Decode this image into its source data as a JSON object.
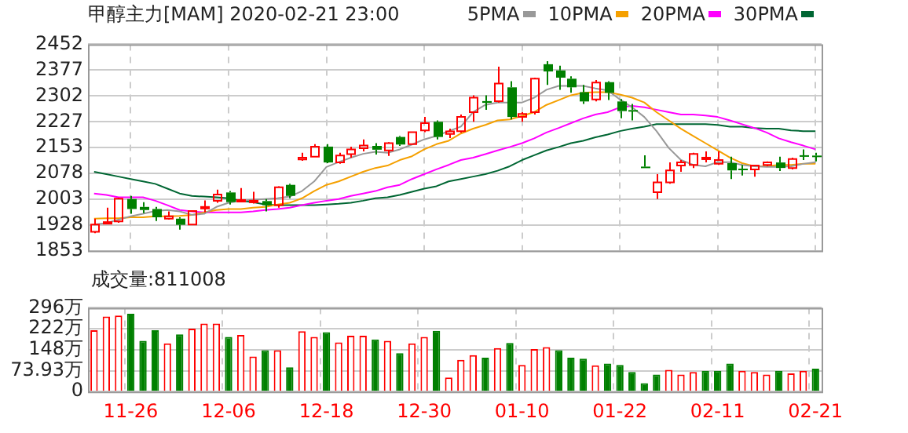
{
  "chart_data": [
    {
      "type": "candlestick",
      "title": "甲醇主力[MAM]  2020-02-21  23:00",
      "categories": [
        null,
        null,
        null,
        null,
        null,
        null,
        null,
        null,
        null,
        null,
        null,
        null,
        null,
        null,
        null,
        null,
        null,
        null,
        null,
        null,
        null,
        null,
        null,
        null,
        null,
        null,
        null,
        null,
        null,
        null,
        null,
        null,
        null,
        null,
        null,
        null,
        null,
        null,
        null,
        null,
        null,
        null,
        null,
        null,
        null,
        null,
        null,
        null,
        null,
        null,
        null,
        null,
        null,
        null,
        null,
        null,
        null,
        null,
        null,
        null
      ],
      "ohlc": [
        [
          1908,
          1946,
          1904,
          1929
        ],
        [
          1932,
          1978,
          1930,
          1936
        ],
        [
          1938,
          2007,
          1934,
          2004
        ],
        [
          2003,
          2012,
          1960,
          1974
        ],
        [
          1980,
          1994,
          1962,
          1971
        ],
        [
          1974,
          1980,
          1939,
          1950
        ],
        [
          1946,
          1967,
          1943,
          1953
        ],
        [
          1946,
          1950,
          1914,
          1928
        ],
        [
          1929,
          1968,
          1929,
          1968
        ],
        [
          1976,
          1999,
          1964,
          1980
        ],
        [
          1998,
          2030,
          1992,
          2016
        ],
        [
          2022,
          2026,
          1987,
          1994
        ],
        [
          1997,
          2035,
          1994,
          2000
        ],
        [
          1994,
          2024,
          1990,
          1998
        ],
        [
          1997,
          2003,
          1967,
          1985
        ],
        [
          1985,
          2040,
          1978,
          2037
        ],
        [
          2044,
          2047,
          2005,
          2012
        ],
        [
          2118,
          2137,
          2114,
          2123
        ],
        [
          2126,
          2162,
          2126,
          2155
        ],
        [
          2155,
          2162,
          2107,
          2109
        ],
        [
          2109,
          2137,
          2105,
          2129
        ],
        [
          2133,
          2155,
          2123,
          2147
        ],
        [
          2150,
          2176,
          2141,
          2158
        ],
        [
          2157,
          2165,
          2132,
          2146
        ],
        [
          2144,
          2168,
          2128,
          2165
        ],
        [
          2183,
          2186,
          2157,
          2161
        ],
        [
          2162,
          2197,
          2162,
          2197
        ],
        [
          2202,
          2241,
          2197,
          2223
        ],
        [
          2227,
          2231,
          2176,
          2183
        ],
        [
          2192,
          2207,
          2180,
          2199
        ],
        [
          2200,
          2248,
          2195,
          2241
        ],
        [
          2255,
          2304,
          2227,
          2297
        ],
        [
          2287,
          2304,
          2262,
          2282
        ],
        [
          2287,
          2387,
          2283,
          2338
        ],
        [
          2327,
          2345,
          2234,
          2241
        ],
        [
          2241,
          2255,
          2227,
          2250
        ],
        [
          2255,
          2355,
          2248,
          2352
        ],
        [
          2394,
          2403,
          2334,
          2373
        ],
        [
          2376,
          2390,
          2320,
          2355
        ],
        [
          2352,
          2359,
          2311,
          2327
        ],
        [
          2313,
          2334,
          2279,
          2286
        ],
        [
          2292,
          2348,
          2286,
          2341
        ],
        [
          2342,
          2345,
          2290,
          2311
        ],
        [
          2286,
          2293,
          2237,
          2258
        ],
        [
          2261,
          2279,
          2231,
          2258
        ],
        [
          2097,
          2130,
          2096,
          2096
        ],
        [
          2023,
          2075,
          2003,
          2051
        ],
        [
          2051,
          2109,
          2047,
          2086
        ],
        [
          2100,
          2116,
          2082,
          2109
        ],
        [
          2102,
          2137,
          2093,
          2134
        ],
        [
          2120,
          2141,
          2109,
          2123
        ],
        [
          2105,
          2141,
          2102,
          2116
        ],
        [
          2107,
          2126,
          2061,
          2086
        ],
        [
          2091,
          2102,
          2071,
          2088
        ],
        [
          2089,
          2102,
          2068,
          2100
        ],
        [
          2102,
          2112,
          2098,
          2109
        ],
        [
          2109,
          2126,
          2084,
          2093
        ],
        [
          2093,
          2123,
          2089,
          2119
        ],
        [
          2130,
          2147,
          2116,
          2127
        ],
        [
          2129,
          2137,
          2112,
          2126
        ]
      ],
      "series": [
        {
          "name": "5PMA",
          "type": "line",
          "color": "#999999",
          "values": [
            1929,
            1933,
            1943,
            1953,
            1960,
            1968,
            1971,
            1967,
            1957,
            1960,
            1980,
            1992,
            1998,
            2001,
            2003,
            2005,
            2010,
            2026,
            2054,
            2096,
            2110,
            2123,
            2134,
            2140,
            2137,
            2147,
            2161,
            2176,
            2186,
            2200,
            2213,
            2255,
            2276,
            2283,
            2283,
            2283,
            2297,
            2320,
            2331,
            2331,
            2331,
            2324,
            2318,
            2292,
            2269,
            2241,
            2200,
            2151,
            2116,
            2102,
            2098,
            2110,
            2110,
            2102,
            2098,
            2096,
            2096,
            2098,
            2105,
            2110
          ]
        },
        {
          "name": "10PMA",
          "type": "line",
          "color": "#f5a000",
          "values": [
            1946,
            1947,
            1947,
            1950,
            1950,
            1953,
            1953,
            1954,
            1957,
            1964,
            1971,
            1974,
            1974,
            1978,
            1980,
            1987,
            1992,
            2005,
            2026,
            2044,
            2054,
            2068,
            2082,
            2093,
            2100,
            2116,
            2127,
            2147,
            2162,
            2172,
            2193,
            2207,
            2218,
            2231,
            2234,
            2244,
            2255,
            2276,
            2290,
            2304,
            2311,
            2313,
            2313,
            2306,
            2297,
            2283,
            2255,
            2231,
            2207,
            2186,
            2165,
            2144,
            2123,
            2107,
            2098,
            2098,
            2102,
            2102,
            2105,
            2105
          ]
        },
        {
          "name": "20PMA",
          "type": "line",
          "color": "#ff00ff",
          "values": [
            2019,
            2015,
            2008,
            2008,
            2008,
            1998,
            1985,
            1971,
            1967,
            1964,
            1964,
            1964,
            1964,
            1967,
            1971,
            1974,
            1978,
            1985,
            1992,
            1998,
            2003,
            2012,
            2019,
            2026,
            2037,
            2044,
            2061,
            2075,
            2089,
            2102,
            2116,
            2123,
            2133,
            2144,
            2154,
            2165,
            2179,
            2196,
            2209,
            2223,
            2237,
            2248,
            2255,
            2269,
            2273,
            2269,
            2262,
            2255,
            2248,
            2248,
            2245,
            2241,
            2231,
            2220,
            2209,
            2196,
            2179,
            2168,
            2158,
            2147
          ]
        },
        {
          "name": "30PMA",
          "type": "line",
          "color": "#006633",
          "values": [
            2082,
            2075,
            2068,
            2061,
            2054,
            2047,
            2033,
            2019,
            2012,
            2010,
            2008,
            2005,
            1998,
            1994,
            1987,
            1985,
            1985,
            1985,
            1985,
            1987,
            1989,
            1992,
            1998,
            2005,
            2008,
            2015,
            2024,
            2033,
            2040,
            2054,
            2061,
            2068,
            2075,
            2085,
            2098,
            2116,
            2130,
            2144,
            2154,
            2165,
            2172,
            2182,
            2190,
            2200,
            2207,
            2213,
            2220,
            2220,
            2220,
            2220,
            2220,
            2218,
            2213,
            2213,
            2209,
            2207,
            2207,
            2202,
            2200,
            2200
          ]
        }
      ],
      "ylim": [
        1853,
        2452
      ],
      "yticks": [
        1853,
        1928,
        2003,
        2078,
        2153,
        2227,
        2302,
        2377,
        2452
      ],
      "grid": true,
      "legend": "top right",
      "tick_labels": "y",
      "marker": "none"
    },
    {
      "type": "bar",
      "title": "成交量:811008",
      "categories": [
        null,
        null,
        null,
        "11-26",
        null,
        null,
        null,
        null,
        null,
        null,
        null,
        "12-06",
        null,
        null,
        null,
        null,
        null,
        null,
        null,
        "12-18",
        null,
        null,
        null,
        null,
        null,
        null,
        null,
        "12-30",
        null,
        null,
        null,
        null,
        null,
        null,
        null,
        "01-10",
        null,
        null,
        null,
        null,
        null,
        null,
        null,
        "01-22",
        null,
        null,
        null,
        null,
        null,
        null,
        null,
        "02-11",
        null,
        null,
        null,
        null,
        null,
        null,
        null,
        "02-21"
      ],
      "values": [
        217,
        265,
        269,
        275,
        179,
        217,
        170,
        202,
        222,
        240,
        240,
        193,
        200,
        124,
        146,
        146,
        86,
        213,
        193,
        210,
        174,
        197,
        197,
        184,
        179,
        136,
        170,
        193,
        215,
        50,
        112,
        129,
        120,
        154,
        172,
        94,
        150,
        157,
        146,
        120,
        116,
        93,
        99,
        94,
        69,
        30,
        60,
        77,
        60,
        69,
        73,
        73,
        99,
        73,
        69,
        60,
        73,
        64,
        73,
        81
      ],
      "colors": [
        "#ff0000",
        "#ff0000",
        "#ff0000",
        "#008000",
        "#008000",
        "#008000",
        "#ff0000",
        "#008000",
        "#ff0000",
        "#ff0000",
        "#ff0000",
        "#008000",
        "#ff0000",
        "#ff0000",
        "#008000",
        "#ff0000",
        "#008000",
        "#ff0000",
        "#ff0000",
        "#008000",
        "#ff0000",
        "#ff0000",
        "#ff0000",
        "#008000",
        "#ff0000",
        "#008000",
        "#ff0000",
        "#ff0000",
        "#008000",
        "#ff0000",
        "#ff0000",
        "#ff0000",
        "#008000",
        "#ff0000",
        "#008000",
        "#ff0000",
        "#ff0000",
        "#ff0000",
        "#008000",
        "#008000",
        "#008000",
        "#ff0000",
        "#008000",
        "#008000",
        "#008000",
        "#008000",
        "#008000",
        "#ff0000",
        "#ff0000",
        "#ff0000",
        "#008000",
        "#008000",
        "#008000",
        "#ff0000",
        "#ff0000",
        "#ff0000",
        "#008000",
        "#ff0000",
        "#ff0000",
        "#008000"
      ],
      "ylim": [
        0,
        296
      ],
      "yticks": [
        0,
        {
          "value": 73.93,
          "label": "73.93万"
        },
        {
          "value": 148,
          "label": "148万"
        },
        {
          "value": 222,
          "label": "222万"
        },
        {
          "value": 296,
          "label": "296万"
        }
      ],
      "grid": true
    }
  ]
}
